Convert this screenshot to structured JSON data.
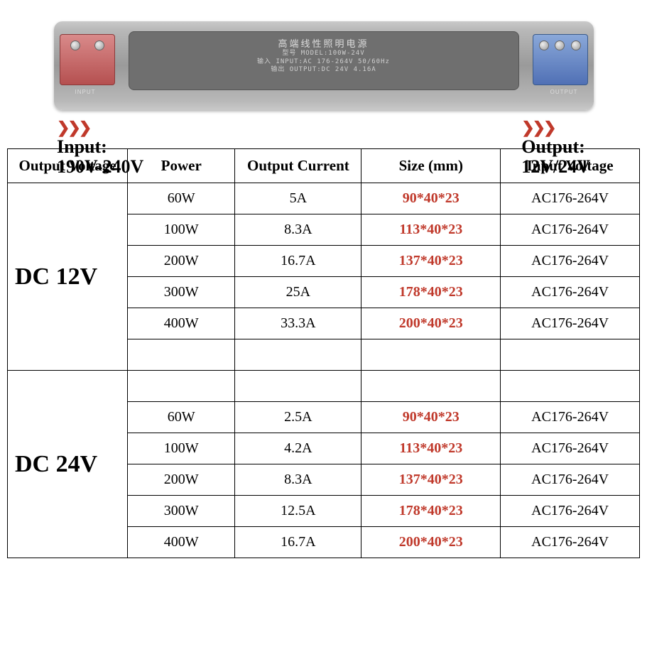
{
  "product": {
    "chinese_title": "高端线性照明电源",
    "model_line": "型号 MODEL:100W-24V",
    "input_line": "输入 INPUT:AC 176-264V 50/60Hz",
    "output_line": "输出 OUTPUT:DC 24V 4.16A",
    "terminal_in_label": "INPUT",
    "terminal_out_label": "OUTPUT"
  },
  "io": {
    "chevrons": "❯❯❯",
    "input_title": "Input:",
    "input_value": "190V-240V",
    "output_title": "Output:",
    "output_value": "12V/24V"
  },
  "table": {
    "columns": [
      "Output Voltage",
      "Power",
      "Output Current",
      "Size (mm)",
      "Input Voltage"
    ],
    "groups": [
      {
        "voltage": "DC 12V",
        "rows": [
          {
            "power": "60W",
            "current": "5A",
            "size": "90*40*23",
            "input": "AC176-264V"
          },
          {
            "power": "100W",
            "current": "8.3A",
            "size": "113*40*23",
            "input": "AC176-264V"
          },
          {
            "power": "200W",
            "current": "16.7A",
            "size": "137*40*23",
            "input": "AC176-264V"
          },
          {
            "power": "300W",
            "current": "25A",
            "size": "178*40*23",
            "input": "AC176-264V"
          },
          {
            "power": "400W",
            "current": "33.3A",
            "size": "200*40*23",
            "input": "AC176-264V"
          },
          {
            "power": "",
            "current": "",
            "size": "",
            "input": ""
          }
        ]
      },
      {
        "voltage": "DC 24V",
        "rows": [
          {
            "power": "",
            "current": "",
            "size": "",
            "input": ""
          },
          {
            "power": "60W",
            "current": "2.5A",
            "size": "90*40*23",
            "input": "AC176-264V"
          },
          {
            "power": "100W",
            "current": "4.2A",
            "size": "113*40*23",
            "input": "AC176-264V"
          },
          {
            "power": "200W",
            "current": "8.3A",
            "size": "137*40*23",
            "input": "AC176-264V"
          },
          {
            "power": "300W",
            "current": "12.5A",
            "size": "178*40*23",
            "input": "AC176-264V"
          },
          {
            "power": "400W",
            "current": "16.7A",
            "size": "200*40*23",
            "input": "AC176-264V"
          }
        ]
      }
    ]
  },
  "style": {
    "size_color": "#c0392b",
    "chevron_color": "#c0392b",
    "border_color": "#000000",
    "background": "#ffffff",
    "header_fontsize": 21,
    "cell_fontsize": 20,
    "voltage_fontsize": 34
  }
}
